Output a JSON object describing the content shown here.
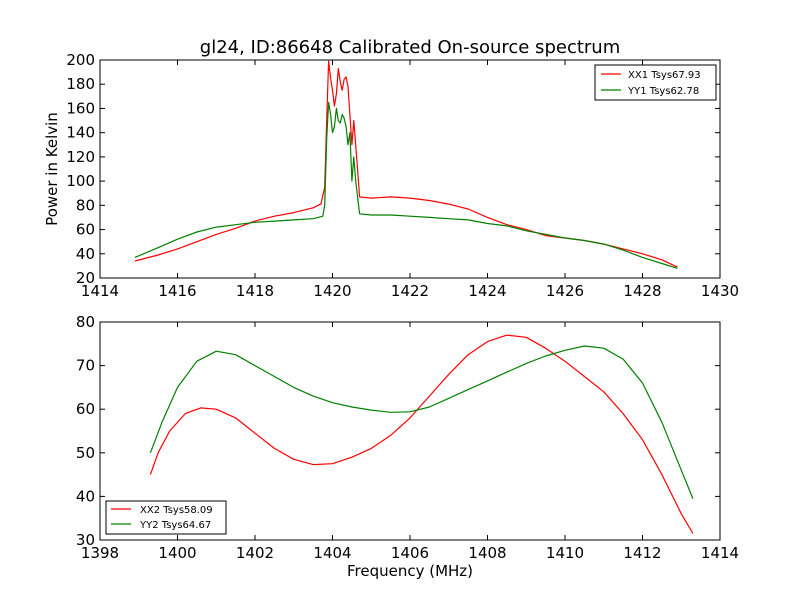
{
  "chart_data": [
    {
      "type": "line",
      "title": "gl24, ID:86648 Calibrated On-source spectrum",
      "xlabel": "",
      "ylabel": "Power in Kelvin",
      "xlim": [
        1414,
        1430
      ],
      "ylim": [
        20,
        200
      ],
      "xticks": [
        "1414",
        "1416",
        "1418",
        "1420",
        "1422",
        "1424",
        "1426",
        "1428",
        "1430"
      ],
      "yticks": [
        "20",
        "40",
        "60",
        "80",
        "100",
        "120",
        "140",
        "160",
        "180",
        "200"
      ],
      "grid": false,
      "legend_position": "top-right",
      "series": [
        {
          "name": "XX1 Tsys67.93",
          "color": "#ff0000",
          "points": [
            [
              1414.9,
              34
            ],
            [
              1415.5,
              39
            ],
            [
              1416,
              44
            ],
            [
              1416.5,
              50
            ],
            [
              1417,
              56
            ],
            [
              1417.5,
              61
            ],
            [
              1418,
              67
            ],
            [
              1418.5,
              71
            ],
            [
              1419,
              74
            ],
            [
              1419.5,
              78
            ],
            [
              1419.7,
              81
            ],
            [
              1419.8,
              95
            ],
            [
              1419.85,
              150
            ],
            [
              1419.9,
              199
            ],
            [
              1419.95,
              185
            ],
            [
              1420,
              175
            ],
            [
              1420.05,
              162
            ],
            [
              1420.1,
              172
            ],
            [
              1420.15,
              193
            ],
            [
              1420.2,
              182
            ],
            [
              1420.25,
              175
            ],
            [
              1420.3,
              184
            ],
            [
              1420.35,
              186
            ],
            [
              1420.4,
              178
            ],
            [
              1420.45,
              155
            ],
            [
              1420.5,
              130
            ],
            [
              1420.55,
              150
            ],
            [
              1420.6,
              130
            ],
            [
              1420.7,
              87
            ],
            [
              1421,
              86
            ],
            [
              1421.5,
              87
            ],
            [
              1422,
              86
            ],
            [
              1422.5,
              84
            ],
            [
              1423,
              81
            ],
            [
              1423.5,
              77
            ],
            [
              1424,
              70
            ],
            [
              1424.5,
              64
            ],
            [
              1425,
              60
            ],
            [
              1425.5,
              55
            ],
            [
              1426,
              53
            ],
            [
              1426.5,
              51
            ],
            [
              1427,
              48
            ],
            [
              1427.5,
              44
            ],
            [
              1428,
              40
            ],
            [
              1428.5,
              35
            ],
            [
              1428.9,
              29
            ]
          ]
        },
        {
          "name": "YY1 Tsys62.78",
          "color": "#008000",
          "points": [
            [
              1414.9,
              37
            ],
            [
              1415.5,
              45
            ],
            [
              1416,
              52
            ],
            [
              1416.5,
              58
            ],
            [
              1417,
              62
            ],
            [
              1417.5,
              64
            ],
            [
              1418,
              66
            ],
            [
              1418.5,
              67
            ],
            [
              1419,
              68
            ],
            [
              1419.5,
              69
            ],
            [
              1419.75,
              71
            ],
            [
              1419.8,
              80
            ],
            [
              1419.85,
              135
            ],
            [
              1419.9,
              165
            ],
            [
              1419.95,
              155
            ],
            [
              1420,
              140
            ],
            [
              1420.05,
              145
            ],
            [
              1420.1,
              160
            ],
            [
              1420.15,
              150
            ],
            [
              1420.2,
              148
            ],
            [
              1420.25,
              155
            ],
            [
              1420.3,
              152
            ],
            [
              1420.35,
              145
            ],
            [
              1420.4,
              130
            ],
            [
              1420.45,
              140
            ],
            [
              1420.5,
              100
            ],
            [
              1420.55,
              120
            ],
            [
              1420.6,
              100
            ],
            [
              1420.7,
              73
            ],
            [
              1421,
              72
            ],
            [
              1421.5,
              72
            ],
            [
              1422,
              71
            ],
            [
              1422.5,
              70
            ],
            [
              1423,
              69
            ],
            [
              1423.5,
              68
            ],
            [
              1424,
              65
            ],
            [
              1424.5,
              63
            ],
            [
              1425,
              59
            ],
            [
              1425.5,
              56
            ],
            [
              1426,
              53
            ],
            [
              1426.5,
              51
            ],
            [
              1427,
              48
            ],
            [
              1427.5,
              43
            ],
            [
              1428,
              37
            ],
            [
              1428.5,
              32
            ],
            [
              1428.9,
              28
            ]
          ]
        }
      ]
    },
    {
      "type": "line",
      "title": "",
      "xlabel": "Frequency (MHz)",
      "ylabel": "",
      "xlim": [
        1398,
        1414
      ],
      "ylim": [
        30,
        80
      ],
      "xticks": [
        "1398",
        "1400",
        "1402",
        "1404",
        "1406",
        "1408",
        "1410",
        "1412",
        "1414"
      ],
      "yticks": [
        "30",
        "40",
        "50",
        "60",
        "70",
        "80"
      ],
      "grid": false,
      "legend_position": "bottom-left",
      "series": [
        {
          "name": "XX2 Tsys58.09",
          "color": "#ff0000",
          "points": [
            [
              1399.3,
              45
            ],
            [
              1399.5,
              50
            ],
            [
              1399.8,
              55
            ],
            [
              1400.2,
              59
            ],
            [
              1400.6,
              60.3
            ],
            [
              1401,
              60
            ],
            [
              1401.5,
              58
            ],
            [
              1402,
              54.5
            ],
            [
              1402.5,
              51
            ],
            [
              1403,
              48.5
            ],
            [
              1403.5,
              47.3
            ],
            [
              1404,
              47.5
            ],
            [
              1404.5,
              49
            ],
            [
              1405,
              51
            ],
            [
              1405.5,
              54
            ],
            [
              1406,
              58
            ],
            [
              1406.5,
              63
            ],
            [
              1407,
              68
            ],
            [
              1407.5,
              72.5
            ],
            [
              1408,
              75.5
            ],
            [
              1408.5,
              77
            ],
            [
              1409,
              76.5
            ],
            [
              1409.5,
              74
            ],
            [
              1410,
              71
            ],
            [
              1410.5,
              67.5
            ],
            [
              1411,
              64
            ],
            [
              1411.5,
              59
            ],
            [
              1412,
              53
            ],
            [
              1412.5,
              45
            ],
            [
              1413,
              36
            ],
            [
              1413.3,
              31.5
            ]
          ]
        },
        {
          "name": "YY2 Tsys64.67",
          "color": "#008000",
          "points": [
            [
              1399.3,
              50
            ],
            [
              1399.6,
              57
            ],
            [
              1400,
              65
            ],
            [
              1400.5,
              71
            ],
            [
              1401,
              73.3
            ],
            [
              1401.5,
              72.5
            ],
            [
              1402,
              70
            ],
            [
              1402.5,
              67.5
            ],
            [
              1403,
              65
            ],
            [
              1403.5,
              63
            ],
            [
              1404,
              61.5
            ],
            [
              1404.5,
              60.5
            ],
            [
              1405,
              59.8
            ],
            [
              1405.5,
              59.3
            ],
            [
              1406,
              59.4
            ],
            [
              1406.5,
              60.5
            ],
            [
              1407,
              62.5
            ],
            [
              1407.5,
              64.5
            ],
            [
              1408,
              66.5
            ],
            [
              1408.5,
              68.5
            ],
            [
              1409,
              70.5
            ],
            [
              1409.5,
              72.2
            ],
            [
              1410,
              73.5
            ],
            [
              1410.5,
              74.5
            ],
            [
              1411,
              74
            ],
            [
              1411.5,
              71.5
            ],
            [
              1412,
              66
            ],
            [
              1412.5,
              57
            ],
            [
              1413,
              46
            ],
            [
              1413.3,
              39.5
            ]
          ]
        }
      ]
    }
  ]
}
